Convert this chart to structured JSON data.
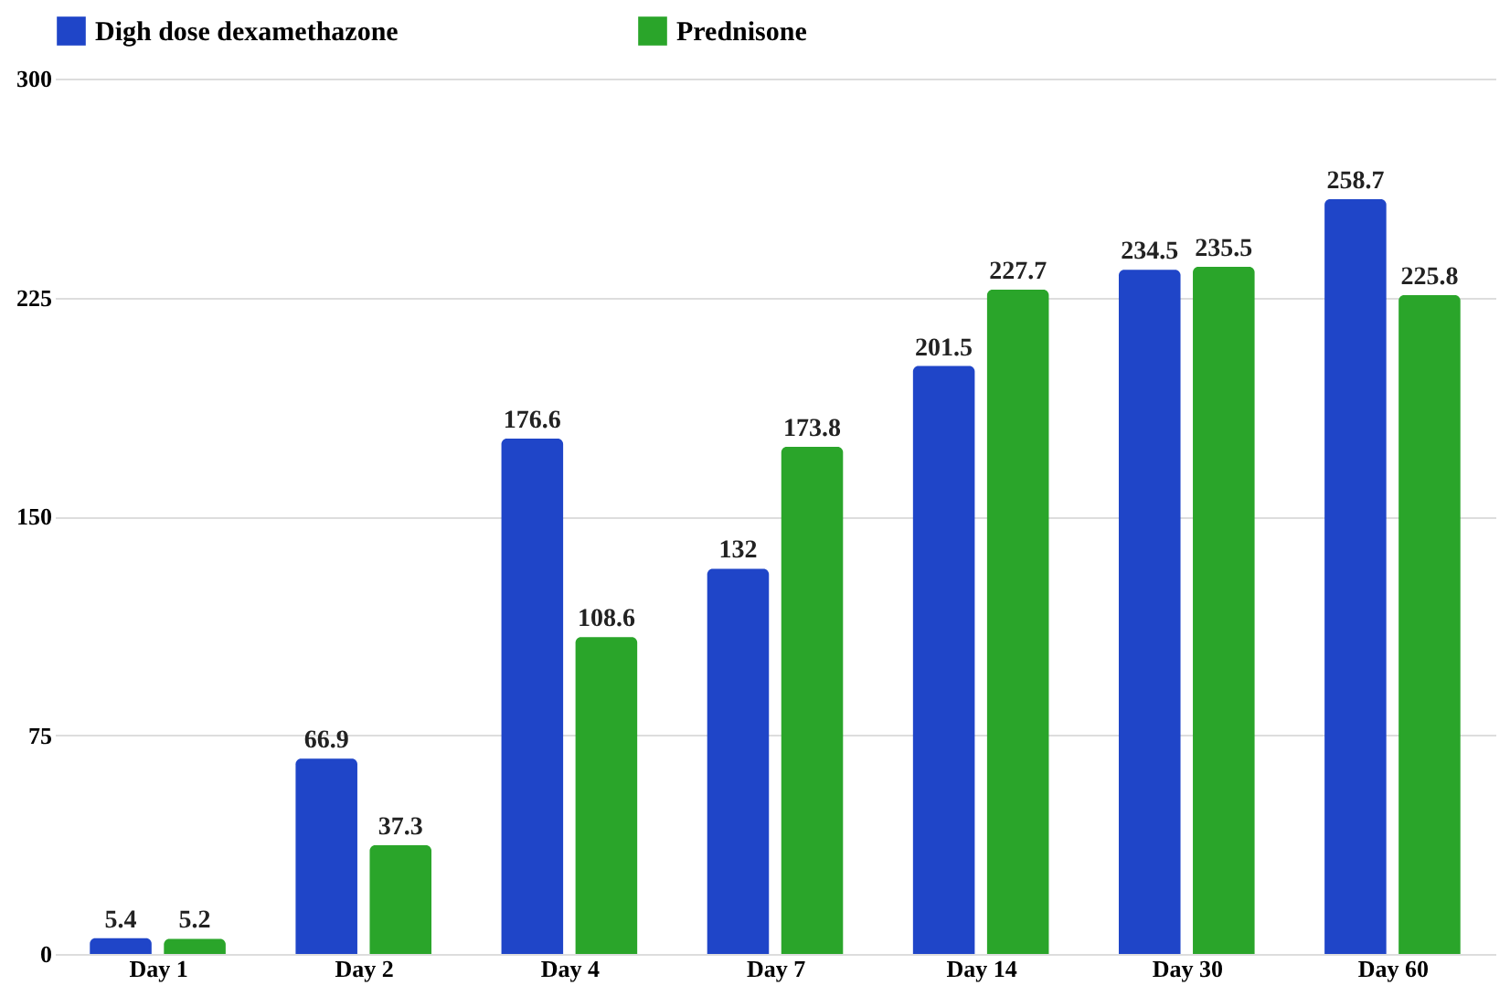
{
  "chart_data": {
    "type": "bar",
    "categories": [
      "Day 1",
      "Day 2",
      "Day 4",
      "Day 7",
      "Day 14",
      "Day 30",
      "Day 60"
    ],
    "series": [
      {
        "name": "Digh dose dexamethazone",
        "color": "#1f45c8",
        "values": [
          5.4,
          66.9,
          176.6,
          132,
          201.5,
          234.5,
          258.7
        ]
      },
      {
        "name": "Prednisone",
        "color": "#2aa52a",
        "values": [
          5.2,
          37.3,
          108.6,
          173.8,
          227.7,
          235.5,
          225.8
        ]
      }
    ],
    "ylim": [
      0,
      300
    ],
    "yticks": [
      0,
      75,
      150,
      225,
      300
    ],
    "grid": "y",
    "legend": "top",
    "data_labels": true
  }
}
